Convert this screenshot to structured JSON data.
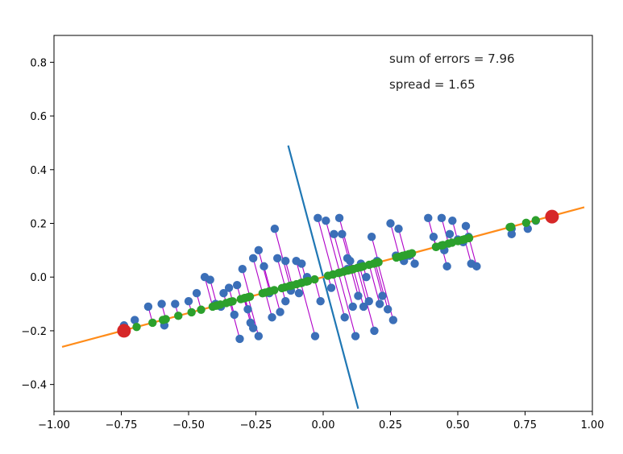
{
  "chart_data": {
    "type": "scatter",
    "xlim": [
      -1.0,
      1.0
    ],
    "ylim": [
      -0.5,
      0.9
    ],
    "grid": false,
    "xticks": [
      -1.0,
      -0.75,
      -0.5,
      -0.25,
      0.0,
      0.25,
      0.5,
      0.75,
      1.0
    ],
    "xtick_labels": [
      "−1.00",
      "−0.75",
      "−0.50",
      "−0.25",
      "0.00",
      "0.25",
      "0.50",
      "0.75",
      "1.00"
    ],
    "yticks": [
      -0.4,
      -0.2,
      0.0,
      0.2,
      0.4,
      0.6,
      0.8
    ],
    "ytick_labels": [
      "−0.4",
      "−0.2",
      "0.0",
      "0.2",
      "0.4",
      "0.6",
      "0.8"
    ],
    "annotations": [
      "sum of errors = 7.96",
      "spread = 1.65"
    ],
    "fit_line": {
      "color": "#ff8c1a",
      "points": [
        [
          -0.97,
          -0.26
        ],
        [
          0.97,
          0.26
        ]
      ]
    },
    "normal_line": {
      "color": "#1f77b4",
      "points": [
        [
          -0.13,
          0.49
        ],
        [
          0.13,
          -0.49
        ]
      ]
    },
    "endpoints": {
      "color": "#d62728",
      "points": [
        [
          -0.74,
          -0.2
        ],
        [
          0.85,
          0.225
        ]
      ]
    },
    "point_color": "#3b6fb8",
    "projection_color": "#2ca02c",
    "error_color": "#b000c8",
    "points": [
      [
        -0.74,
        -0.18
      ],
      [
        -0.7,
        -0.16
      ],
      [
        -0.65,
        -0.11
      ],
      [
        -0.6,
        -0.1
      ],
      [
        -0.59,
        -0.18
      ],
      [
        -0.55,
        -0.1
      ],
      [
        -0.5,
        -0.09
      ],
      [
        -0.47,
        -0.06
      ],
      [
        -0.44,
        0.0
      ],
      [
        -0.42,
        -0.01
      ],
      [
        -0.4,
        -0.1
      ],
      [
        -0.38,
        -0.11
      ],
      [
        -0.37,
        -0.06
      ],
      [
        -0.35,
        -0.04
      ],
      [
        -0.33,
        -0.14
      ],
      [
        -0.32,
        -0.03
      ],
      [
        -0.31,
        -0.23
      ],
      [
        -0.3,
        0.03
      ],
      [
        -0.28,
        -0.12
      ],
      [
        -0.27,
        -0.17
      ],
      [
        -0.26,
        -0.19
      ],
      [
        -0.26,
        0.07
      ],
      [
        -0.24,
        0.1
      ],
      [
        -0.24,
        -0.22
      ],
      [
        -0.22,
        0.04
      ],
      [
        -0.2,
        -0.06
      ],
      [
        -0.19,
        -0.15
      ],
      [
        -0.18,
        0.18
      ],
      [
        -0.17,
        0.07
      ],
      [
        -0.16,
        -0.13
      ],
      [
        -0.14,
        0.06
      ],
      [
        -0.14,
        -0.09
      ],
      [
        -0.12,
        -0.05
      ],
      [
        -0.1,
        0.06
      ],
      [
        -0.09,
        -0.06
      ],
      [
        -0.08,
        0.05
      ],
      [
        -0.06,
        0.0
      ],
      [
        -0.03,
        -0.22
      ],
      [
        -0.02,
        0.22
      ],
      [
        -0.01,
        -0.09
      ],
      [
        0.01,
        0.21
      ],
      [
        0.03,
        -0.04
      ],
      [
        0.04,
        0.16
      ],
      [
        0.06,
        0.22
      ],
      [
        0.07,
        0.16
      ],
      [
        0.08,
        -0.15
      ],
      [
        0.09,
        0.07
      ],
      [
        0.09,
        0.03
      ],
      [
        0.1,
        0.06
      ],
      [
        0.11,
        -0.11
      ],
      [
        0.12,
        -0.22
      ],
      [
        0.13,
        -0.07
      ],
      [
        0.14,
        0.05
      ],
      [
        0.15,
        -0.11
      ],
      [
        0.16,
        0.0
      ],
      [
        0.17,
        -0.09
      ],
      [
        0.18,
        0.15
      ],
      [
        0.19,
        -0.2
      ],
      [
        0.2,
        0.06
      ],
      [
        0.21,
        -0.1
      ],
      [
        0.22,
        -0.07
      ],
      [
        0.24,
        -0.12
      ],
      [
        0.25,
        0.2
      ],
      [
        0.26,
        -0.16
      ],
      [
        0.27,
        0.08
      ],
      [
        0.28,
        0.18
      ],
      [
        0.3,
        0.06
      ],
      [
        0.32,
        0.08
      ],
      [
        0.34,
        0.05
      ],
      [
        0.39,
        0.22
      ],
      [
        0.41,
        0.15
      ],
      [
        0.44,
        0.22
      ],
      [
        0.45,
        0.1
      ],
      [
        0.46,
        0.04
      ],
      [
        0.47,
        0.16
      ],
      [
        0.48,
        0.21
      ],
      [
        0.5,
        0.14
      ],
      [
        0.52,
        0.13
      ],
      [
        0.53,
        0.19
      ],
      [
        0.54,
        0.15
      ],
      [
        0.55,
        0.05
      ],
      [
        0.57,
        0.04
      ],
      [
        0.7,
        0.18
      ],
      [
        0.7,
        0.16
      ],
      [
        0.76,
        0.18
      ],
      [
        0.79,
        0.21
      ]
    ]
  }
}
